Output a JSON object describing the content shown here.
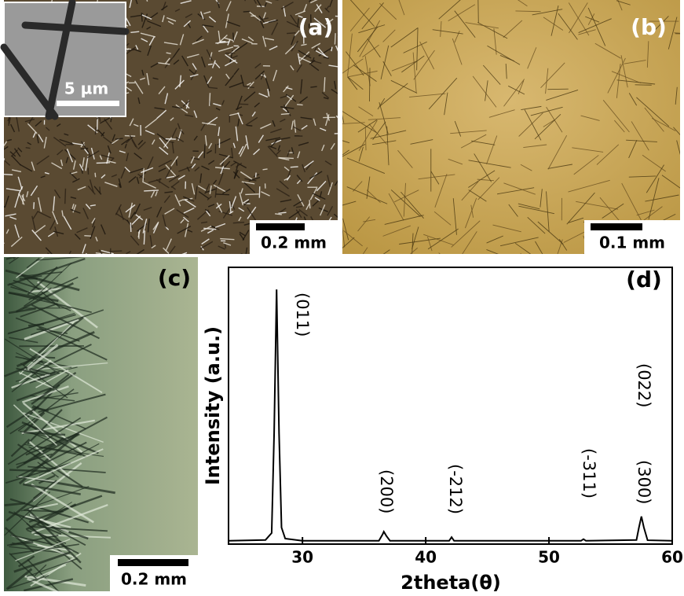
{
  "panels": [
    {
      "label": "(a)",
      "scale_bar": "0.2 mm",
      "inset_scale_bar": "5 µm"
    },
    {
      "label": "(b)",
      "scale_bar": "0.1 mm"
    },
    {
      "label": "(c)",
      "scale_bar": "0.2 mm"
    }
  ],
  "chart_data": {
    "type": "line",
    "panel_label": "(d)",
    "x_label": "2theta(θ)",
    "y_label": "Intensity (a.u.)",
    "x": [
      24,
      27,
      27.5,
      27.7,
      27.9,
      28.1,
      28.3,
      28.6,
      30,
      36.2,
      36.5,
      36.6,
      36.8,
      37.1,
      41.9,
      42.1,
      42.3,
      52.6,
      52.8,
      53.0,
      57.1,
      57.3,
      57.5,
      57.7,
      58,
      60
    ],
    "series": [
      {
        "color": "#000000",
        "values": [
          1.2,
          1.5,
          4,
          40,
          92,
          40,
          6,
          2,
          1.2,
          1.2,
          3.5,
          4.5,
          3,
          1.2,
          1.2,
          2.5,
          1.2,
          1.2,
          1.8,
          1.2,
          1.5,
          6,
          10,
          6,
          1.4,
          1.2
        ]
      }
    ],
    "xlim": [
      24,
      60
    ],
    "xticks": [
      30,
      40,
      50,
      60
    ],
    "ylim": [
      0,
      100
    ],
    "annotations": [
      "(011)",
      "(200)",
      "(-212)",
      "(-311)",
      "(300)",
      "(022)"
    ]
  }
}
